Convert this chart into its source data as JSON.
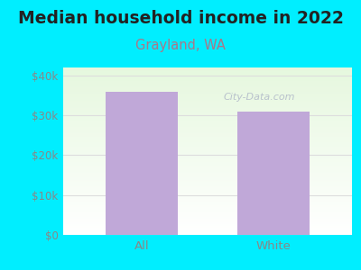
{
  "title": "Median household income in 2022",
  "subtitle": "Grayland, WA",
  "categories": [
    "All",
    "White"
  ],
  "values": [
    36000,
    31000
  ],
  "bar_color": "#c0a8d8",
  "background_color": "#00eeff",
  "title_fontsize": 13.5,
  "subtitle_fontsize": 10.5,
  "subtitle_color": "#aa7788",
  "tick_color": "#888888",
  "ylabel_ticks": [
    0,
    10000,
    20000,
    30000,
    40000
  ],
  "ylabel_labels": [
    "$0",
    "$10k",
    "$20k",
    "$30k",
    "$40k"
  ],
  "ylim": [
    0,
    42000
  ],
  "watermark": "City-Data.com",
  "watermark_color": "#b0b8c8",
  "grid_color": "#dddddd",
  "title_color": "#222222"
}
